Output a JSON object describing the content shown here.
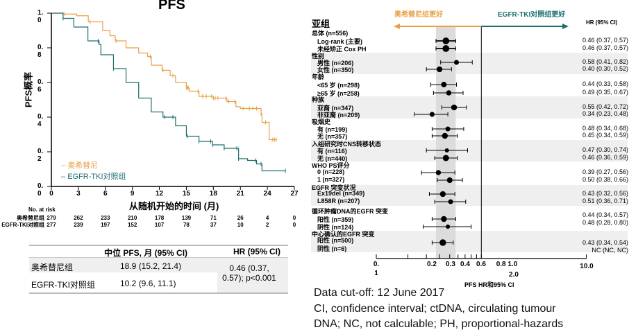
{
  "colors": {
    "osimertinib": "#E8A045",
    "control": "#1E6E6E",
    "band": "#DCDCDC",
    "row_shade": "#EFEFEF"
  },
  "km": {
    "title": "PFS",
    "ylabel": "PFS概率",
    "xlabel": "从随机开始的时间 (月)",
    "risk_header": "No. at risk",
    "legend": [
      {
        "label": "奥希替尼"
      },
      {
        "label": "EGFR-TKI对照组"
      }
    ]
  },
  "chart_data": [
    {
      "type": "line",
      "title": "PFS",
      "xlabel": "从随机开始的时间 (月)",
      "ylabel": "PFS概率",
      "xlim": [
        0,
        27
      ],
      "ylim": [
        0,
        1.0
      ],
      "xticks": [
        "0",
        "3",
        "6",
        "9",
        "12",
        "15",
        "18",
        "21",
        "24",
        "27"
      ],
      "yticks": [
        "0.0",
        "0.2",
        "0.4",
        "0.6",
        "0.8",
        "1.0"
      ],
      "legend_position": "bottom-left",
      "step": true,
      "series": [
        {
          "name": "奥希替尼",
          "x": [
            0,
            1.3,
            2.8,
            4.1,
            5.7,
            6.5,
            7.1,
            8.3,
            9.7,
            10.7,
            11.1,
            12.3,
            13.2,
            13.8,
            15.0,
            15.3,
            16.4,
            18.0,
            19.5,
            20.5,
            21.0,
            23.3,
            23.4,
            24.2,
            25.0
          ],
          "y": [
            1.0,
            0.995,
            0.985,
            0.95,
            0.9,
            0.87,
            0.84,
            0.8,
            0.77,
            0.75,
            0.7,
            0.67,
            0.64,
            0.6,
            0.57,
            0.55,
            0.52,
            0.51,
            0.49,
            0.46,
            0.45,
            0.42,
            0.37,
            0.27,
            0.27
          ],
          "censored": [
            1.3,
            1.5,
            4.3,
            7.2,
            11.0,
            12.4,
            13.5,
            15.0,
            15.1,
            15.2,
            16.3,
            16.8,
            17.2,
            17.8,
            18.0,
            18.2,
            18.5,
            19.4,
            19.7,
            20.4,
            21.3,
            22.0,
            22.4,
            22.8,
            23.3,
            23.8,
            24.6,
            24.8,
            25.0
          ],
          "censor_level": "auto"
        },
        {
          "name": "EGFR-TKI对照组",
          "x": [
            0,
            1.3,
            2.5,
            4.06,
            5.3,
            5.5,
            6.9,
            8.3,
            9.7,
            11.1,
            12.4,
            13.8,
            15.0,
            16.4,
            17.9,
            19.2,
            20.8,
            21.8,
            22.8,
            23.4,
            26.0
          ],
          "y": [
            1.0,
            0.97,
            0.92,
            0.84,
            0.82,
            0.76,
            0.68,
            0.6,
            0.51,
            0.43,
            0.4,
            0.35,
            0.29,
            0.26,
            0.24,
            0.22,
            0.16,
            0.15,
            0.13,
            0.09,
            0.09
          ],
          "censored": [
            1.3,
            5.2,
            6.9,
            12.6,
            13.5,
            15.1,
            16.4,
            17.7,
            17.9,
            19.2,
            20.6,
            20.8,
            22.7,
            23.3,
            26.0
          ]
        }
      ],
      "at_risk": {
        "times": [
          "0",
          "3",
          "6",
          "9",
          "12",
          "15",
          "18",
          "21",
          "24",
          "27"
        ],
        "rows": [
          {
            "label": "奥希替尼组",
            "values": [
              "279",
              "262",
              "233",
              "210",
              "178",
              "139",
              "71",
              "26",
              "4",
              "0"
            ]
          },
          {
            "label": "EGFR-TKI对照组",
            "values": [
              "277",
              "239",
              "197",
              "152",
              "107",
              "78",
              "37",
              "10",
              "2",
              "0"
            ]
          }
        ]
      }
    },
    {
      "type": "forest",
      "xlabel": "PFS HR和95% CI",
      "x_scale": "log",
      "xlim": [
        0.1,
        10.0
      ],
      "reference_line": 1.0,
      "shaded_band": [
        0.37,
        0.57
      ],
      "xtick_labels": [
        "0.\n1",
        "0.2",
        "0.3",
        "0.4",
        "0.6",
        "0.8 1.0",
        "2.0",
        "10.0"
      ],
      "favours_left": "奥希替尼组更好",
      "favours_right": "EGFR-TKI对照组更好",
      "column_header": "亚组",
      "value_header": "HR (95% CI)",
      "rows": [
        {
          "label": "总体 (n=556)",
          "header": true
        },
        {
          "label": "Log-rank (主要)",
          "hr": 0.46,
          "lo": 0.37,
          "hi": 0.57,
          "text": "0.46 (0.37, 0.57)",
          "n": 556
        },
        {
          "label": "未经矫正 Cox PH",
          "hr": 0.46,
          "lo": 0.37,
          "hi": 0.57,
          "text": "0.46 (0.37, 0.57)",
          "n": 556
        },
        {
          "label": "性别",
          "header": true
        },
        {
          "label": "男性 (n=206)",
          "hr": 0.58,
          "lo": 0.41,
          "hi": 0.82,
          "text": "0.58 (0.41, 0.82)",
          "n": 206
        },
        {
          "label": "女性 (n=350)",
          "hr": 0.4,
          "lo": 0.3,
          "hi": 0.52,
          "text": "0.40 (0.30, 0.52)",
          "n": 350
        },
        {
          "label": "年龄",
          "header": true
        },
        {
          "label": "<65 岁 (n=298)",
          "hr": 0.44,
          "lo": 0.33,
          "hi": 0.58,
          "text": "0.44 (0.33, 0.58)",
          "n": 298
        },
        {
          "label": "≥65 岁 (n=258)",
          "hr": 0.49,
          "lo": 0.35,
          "hi": 0.67,
          "text": "0.49 (0.35, 0.67)",
          "n": 258
        },
        {
          "label": "种族",
          "header": true
        },
        {
          "label": "亚裔 (n=347)",
          "hr": 0.55,
          "lo": 0.42,
          "hi": 0.72,
          "text": "0.55 (0.42, 0.72)",
          "n": 347
        },
        {
          "label": "非亚裔 (n=209)",
          "hr": 0.34,
          "lo": 0.23,
          "hi": 0.48,
          "text": "0.34 (0.23, 0.48)",
          "n": 209
        },
        {
          "label": "吸烟史",
          "header": true
        },
        {
          "label": "有 (n=199)",
          "hr": 0.48,
          "lo": 0.34,
          "hi": 0.68,
          "text": "0.48 (0.34, 0.68)",
          "n": 199
        },
        {
          "label": "无 (n=357)",
          "hr": 0.45,
          "lo": 0.34,
          "hi": 0.59,
          "text": "0.45 (0.34, 0.59)",
          "n": 357
        },
        {
          "label": "入组研究时CNS转移状态",
          "header": true
        },
        {
          "label": "有 (n=116)",
          "hr": 0.47,
          "lo": 0.3,
          "hi": 0.74,
          "text": "0.47 (0.30, 0.74)",
          "n": 116
        },
        {
          "label": "无 (n=440)",
          "hr": 0.46,
          "lo": 0.36,
          "hi": 0.59,
          "text": "0.46 (0.36, 0.59)",
          "n": 440
        },
        {
          "label": "WHO PS评分",
          "header": true
        },
        {
          "label": "0 (n=228)",
          "hr": 0.39,
          "lo": 0.27,
          "hi": 0.56,
          "text": "0.39 (0.27, 0.56)",
          "n": 228
        },
        {
          "label": "1 (n=327)",
          "hr": 0.5,
          "lo": 0.38,
          "hi": 0.66,
          "text": "0.50 (0.38, 0.66)",
          "n": 327
        },
        {
          "label": "EGFR 突变状况",
          "header": true
        },
        {
          "label": "Ex19del (n=349)",
          "hr": 0.43,
          "lo": 0.32,
          "hi": 0.56,
          "text": "0.43 (0.32, 0.56)",
          "n": 349
        },
        {
          "label": "L858R (n=207)",
          "hr": 0.51,
          "lo": 0.36,
          "hi": 0.71,
          "text": "0.51 (0.36, 0.71)",
          "n": 207
        },
        {
          "label": "循环肿瘤DNA的EGFR 突变",
          "header": true
        },
        {
          "label": "阳性 (n=359)",
          "hr": 0.44,
          "lo": 0.34,
          "hi": 0.57,
          "text": "0.44 (0.34, 0.57)",
          "n": 359
        },
        {
          "label": "阴性 (n=124)",
          "hr": 0.48,
          "lo": 0.28,
          "hi": 0.8,
          "text": "0.48 (0.28, 0.80)",
          "n": 124
        },
        {
          "label": "中心确认的EGFR 突变",
          "header": true
        },
        {
          "label": "阳性 (n=500)",
          "hr": 0.43,
          "lo": 0.34,
          "hi": 0.54,
          "text": "0.43 (0.34, 0.54)",
          "n": 500
        },
        {
          "label": "阴性 (n=6)",
          "text": "NC (NC, NC)",
          "n": 6
        }
      ]
    }
  ],
  "summary_table": {
    "headers": [
      "",
      "中位 PFS, 月 (95% CI)",
      "HR (95% CI)"
    ],
    "rows": [
      {
        "group": "奥希替尼组",
        "median": "18.9 (15.2, 21.4)"
      },
      {
        "group": "EGFR-TKI对照组",
        "median": "10.2 (9.6, 11.1)"
      }
    ],
    "hr": "0.46 (0.37, 0.57); p<0.001"
  },
  "footnotes": [
    "Data cut-off: 12 June 2017",
    "CI, confidence  interval;  ctDNA, circulating tumour",
    "DNA; NC, not calculable;  PH, proportional-hazards"
  ]
}
